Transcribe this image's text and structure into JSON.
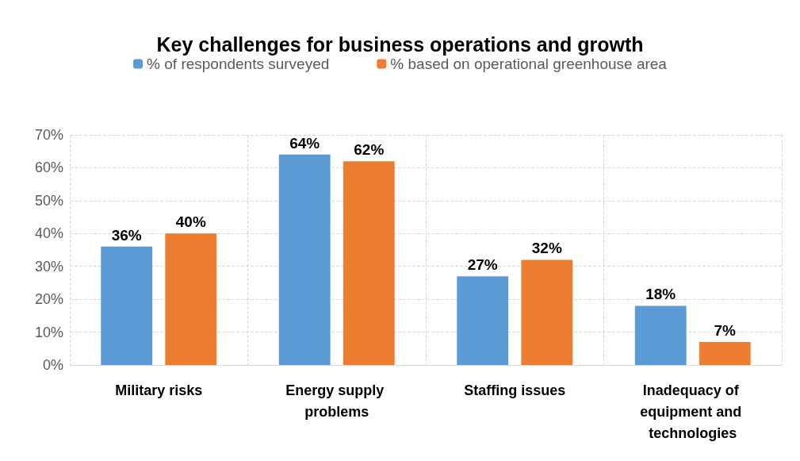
{
  "chart_data": {
    "type": "bar",
    "title": "Key challenges for business operations and growth",
    "categories": [
      "Military risks",
      "Energy supply problems",
      "Staffing issues",
      "Inadequacy of equipment and technologies"
    ],
    "series": [
      {
        "name": "% of respondents surveyed",
        "color": "#5b9bd5",
        "values": [
          36,
          64,
          27,
          18
        ],
        "value_labels": [
          "36%",
          "64%",
          "27%",
          "18%"
        ]
      },
      {
        "name": "% based on operational greenhouse area",
        "color": "#ed7d31",
        "values": [
          40,
          62,
          32,
          7
        ],
        "value_labels": [
          "40%",
          "62%",
          "32%",
          "7%"
        ]
      }
    ],
    "ylim": [
      0,
      70
    ],
    "yticks": [
      {
        "value": 0,
        "label": "0%"
      },
      {
        "value": 10,
        "label": "10%"
      },
      {
        "value": 20,
        "label": "20%"
      },
      {
        "value": 30,
        "label": "30%"
      },
      {
        "value": 40,
        "label": "40%"
      },
      {
        "value": 50,
        "label": "50%"
      },
      {
        "value": 60,
        "label": "60%"
      },
      {
        "value": 70,
        "label": "70%"
      }
    ],
    "grid": true,
    "legend": "top"
  }
}
